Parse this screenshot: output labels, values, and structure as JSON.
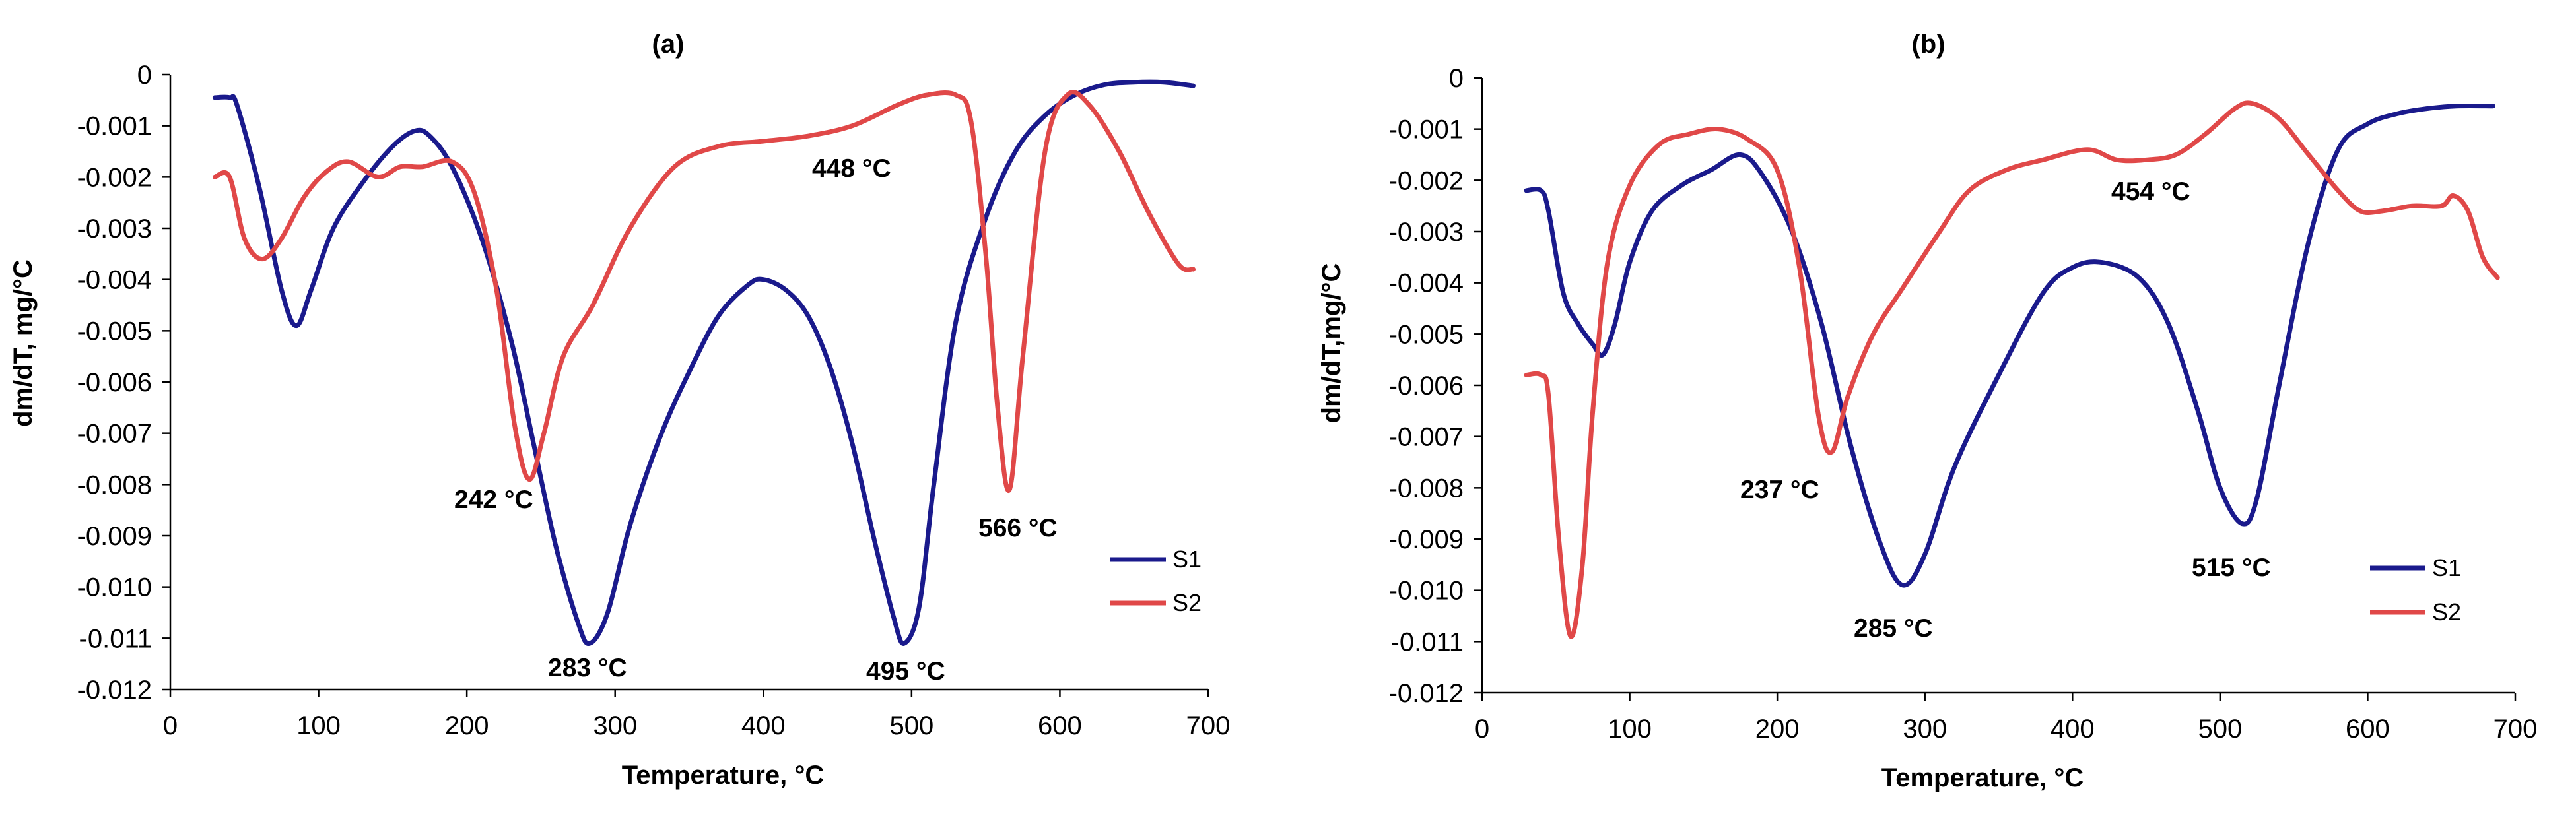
{
  "chart_data": [
    {
      "type": "line",
      "title": "(a)",
      "xlabel": "Temperature, °C",
      "ylabel": "dm/dT, mg/°C",
      "xlim": [
        0,
        700
      ],
      "ylim": [
        -0.012,
        0
      ],
      "x_ticks": [
        "0",
        "100",
        "200",
        "300",
        "400",
        "500",
        "600",
        "700"
      ],
      "y_ticks": [
        "0",
        "-0.001",
        "-0.002",
        "-0.003",
        "-0.004",
        "-0.005",
        "-0.006",
        "-0.007",
        "-0.008",
        "-0.009",
        "-0.010",
        "-0.011",
        "-0.012"
      ],
      "grid": false,
      "series": [
        {
          "name": "S1",
          "color": "#1a1a8c",
          "x": [
            30,
            40,
            45,
            60,
            75,
            85,
            95,
            110,
            130,
            150,
            165,
            175,
            190,
            210,
            230,
            245,
            260,
            275,
            283,
            295,
            310,
            330,
            350,
            370,
            390,
            400,
            415,
            430,
            445,
            460,
            475,
            488,
            495,
            505,
            515,
            530,
            550,
            570,
            590,
            610,
            630,
            650,
            670,
            690
          ],
          "y": [
            -0.00045,
            -0.00045,
            -0.0006,
            -0.0022,
            -0.0042,
            -0.0049,
            -0.0042,
            -0.003,
            -0.0021,
            -0.0014,
            -0.0011,
            -0.0012,
            -0.0018,
            -0.0032,
            -0.0052,
            -0.0072,
            -0.0092,
            -0.0107,
            -0.0111,
            -0.0105,
            -0.0088,
            -0.0071,
            -0.0058,
            -0.0047,
            -0.0041,
            -0.004,
            -0.0042,
            -0.0047,
            -0.0057,
            -0.0072,
            -0.0091,
            -0.0106,
            -0.0111,
            -0.0104,
            -0.008,
            -0.0048,
            -0.0028,
            -0.0015,
            -0.0008,
            -0.0004,
            -0.0002,
            -0.00015,
            -0.00015,
            -0.00022
          ]
        },
        {
          "name": "S2",
          "color": "#e04848",
          "x": [
            30,
            40,
            50,
            62,
            75,
            90,
            105,
            120,
            140,
            155,
            170,
            190,
            205,
            220,
            232,
            242,
            252,
            265,
            285,
            310,
            340,
            370,
            400,
            430,
            460,
            490,
            510,
            530,
            540,
            550,
            558,
            566,
            575,
            590,
            605,
            620,
            640,
            660,
            680,
            690
          ],
          "y": [
            -0.002,
            -0.002,
            -0.0032,
            -0.0036,
            -0.0032,
            -0.0024,
            -0.0019,
            -0.0017,
            -0.002,
            -0.0018,
            -0.0018,
            -0.0017,
            -0.0023,
            -0.0042,
            -0.0068,
            -0.0079,
            -0.007,
            -0.0055,
            -0.0045,
            -0.003,
            -0.0018,
            -0.0014,
            -0.0013,
            -0.0012,
            -0.001,
            -0.0006,
            -0.0004,
            -0.0004,
            -0.0009,
            -0.0035,
            -0.0065,
            -0.0081,
            -0.0055,
            -0.0015,
            -0.0004,
            -0.0006,
            -0.0015,
            -0.0027,
            -0.0037,
            -0.0038
          ]
        }
      ],
      "annotations": [
        "242 °C",
        "283 °C",
        "448 °C",
        "495 °C",
        "566 °C"
      ],
      "legend": "right",
      "legend_entries": [
        "S1",
        "S2"
      ]
    },
    {
      "type": "line",
      "title": "(b)",
      "xlabel": "Temperature, °C",
      "ylabel": "dm/dT,mg/°C",
      "xlim": [
        0,
        700
      ],
      "ylim": [
        -0.012,
        0
      ],
      "x_ticks": [
        "0",
        "100",
        "200",
        "300",
        "400",
        "500",
        "600",
        "700"
      ],
      "y_ticks": [
        "0",
        "-0.001",
        "-0.002",
        "-0.003",
        "-0.004",
        "-0.005",
        "-0.006",
        "-0.007",
        "-0.008",
        "-0.009",
        "-0.010",
        "-0.011",
        "-0.012"
      ],
      "grid": false,
      "series": [
        {
          "name": "S1",
          "color": "#1a1a8c",
          "x": [
            30,
            40,
            45,
            55,
            65,
            75,
            82,
            90,
            100,
            115,
            135,
            155,
            175,
            190,
            210,
            230,
            250,
            270,
            285,
            300,
            320,
            350,
            380,
            400,
            420,
            445,
            465,
            485,
            500,
            515,
            525,
            540,
            560,
            580,
            600,
            620,
            640,
            660,
            685
          ],
          "y": [
            -0.0022,
            -0.0022,
            -0.0026,
            -0.0042,
            -0.0048,
            -0.0052,
            -0.0054,
            -0.0048,
            -0.0036,
            -0.0026,
            -0.0021,
            -0.0018,
            -0.0015,
            -0.0019,
            -0.003,
            -0.0048,
            -0.0072,
            -0.0091,
            -0.0099,
            -0.0093,
            -0.0076,
            -0.0058,
            -0.0042,
            -0.0037,
            -0.0036,
            -0.0039,
            -0.0048,
            -0.0065,
            -0.008,
            -0.0087,
            -0.0082,
            -0.006,
            -0.0032,
            -0.0014,
            -0.0009,
            -0.0007,
            -0.0006,
            -0.00055,
            -0.00055
          ]
        },
        {
          "name": "S2",
          "color": "#e04848",
          "x": [
            30,
            40,
            45,
            52,
            60,
            68,
            75,
            85,
            100,
            120,
            140,
            160,
            180,
            200,
            215,
            228,
            237,
            248,
            265,
            285,
            310,
            330,
            355,
            380,
            410,
            430,
            450,
            470,
            490,
            510,
            522,
            540,
            560,
            580,
            595,
            610,
            630,
            650,
            658,
            668,
            678,
            688
          ],
          "y": [
            -0.0058,
            -0.0058,
            -0.0062,
            -0.009,
            -0.0109,
            -0.0095,
            -0.0065,
            -0.0036,
            -0.0021,
            -0.0013,
            -0.0011,
            -0.001,
            -0.0012,
            -0.0018,
            -0.0037,
            -0.0066,
            -0.0073,
            -0.0062,
            -0.005,
            -0.0041,
            -0.003,
            -0.0022,
            -0.0018,
            -0.0016,
            -0.0014,
            -0.0016,
            -0.0016,
            -0.0015,
            -0.0011,
            -0.0006,
            -0.0005,
            -0.0008,
            -0.0015,
            -0.0022,
            -0.0026,
            -0.0026,
            -0.0025,
            -0.0025,
            -0.0023,
            -0.0026,
            -0.0035,
            -0.0039
          ]
        }
      ],
      "annotations": [
        "237 °C",
        "285 °C",
        "454 °C",
        "515 °C"
      ],
      "legend": "right",
      "legend_entries": [
        "S1",
        "S2"
      ]
    }
  ]
}
